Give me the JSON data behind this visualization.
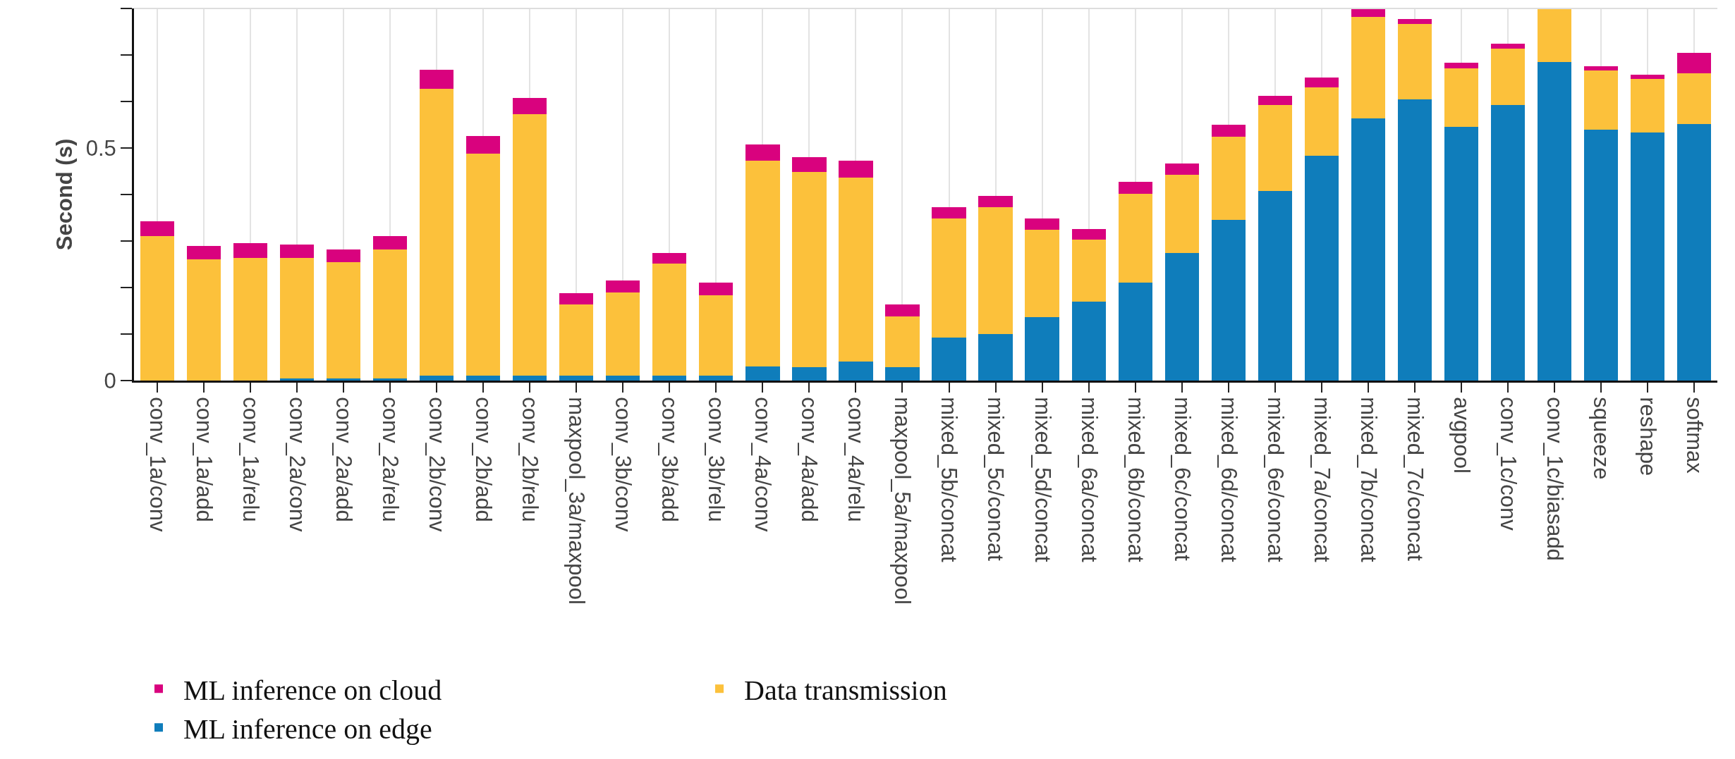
{
  "chart_data": {
    "type": "bar",
    "stacked": true,
    "ylabel": "Second (s)",
    "categories": [
      "conv_1a/conv",
      "conv_1a/add",
      "conv_1a/relu",
      "conv_2a/conv",
      "conv_2a/add",
      "conv_2a/relu",
      "conv_2b/conv",
      "conv_2b/add",
      "conv_2b/relu",
      "maxpool_3a/maxpool",
      "conv_3b/conv",
      "conv_3b/add",
      "conv_3b/relu",
      "conv_4a/conv",
      "conv_4a/add",
      "conv_4a/relu",
      "maxpool_5a/maxpool",
      "mixed_5b/concat",
      "mixed_5c/concat",
      "mixed_5d/concat",
      "mixed_6a/concat",
      "mixed_6b/concat",
      "mixed_6c/concat",
      "mixed_6d/concat",
      "mixed_6e/concat",
      "mixed_7a/concat",
      "mixed_7b/concat",
      "mixed_7c/concat",
      "avgpool",
      "conv_1c/conv",
      "conv_1c/biasadd",
      "squeeze",
      "reshape",
      "softmax"
    ],
    "series": [
      {
        "name": "ML inference on edge",
        "color": "#0f7dbb",
        "values": [
          0,
          0,
          0,
          0.005,
          0.005,
          0.005,
          0.01,
          0.01,
          0.01,
          0.011,
          0.011,
          0.011,
          0.011,
          0.03,
          0.029,
          0.041,
          0.029,
          0.093,
          0.1,
          0.136,
          0.17,
          0.211,
          0.275,
          0.346,
          0.407,
          0.483,
          0.563,
          0.605,
          0.546,
          0.593,
          0.685,
          0.54,
          0.534,
          0.552
        ]
      },
      {
        "name": "Data transmission",
        "color": "#fcc13b",
        "values": [
          0.31,
          0.261,
          0.264,
          0.258,
          0.25,
          0.277,
          0.618,
          0.478,
          0.562,
          0.153,
          0.179,
          0.24,
          0.173,
          0.443,
          0.42,
          0.396,
          0.109,
          0.256,
          0.273,
          0.188,
          0.133,
          0.191,
          0.167,
          0.179,
          0.185,
          0.148,
          0.219,
          0.162,
          0.125,
          0.12,
          0.115,
          0.126,
          0.114,
          0.108
        ]
      },
      {
        "name": "ML inference on cloud",
        "color": "#d9027e",
        "values": [
          0.032,
          0.028,
          0.031,
          0.03,
          0.027,
          0.029,
          0.04,
          0.038,
          0.036,
          0.024,
          0.025,
          0.023,
          0.027,
          0.035,
          0.032,
          0.035,
          0.025,
          0.024,
          0.024,
          0.025,
          0.023,
          0.025,
          0.025,
          0.025,
          0.02,
          0.021,
          0.018,
          0.011,
          0.012,
          0.011,
          null,
          0.01,
          0.01,
          0.044
        ]
      }
    ],
    "ylim": [
      0,
      0.8
    ],
    "yticks": [
      0,
      {
        "value": 0.1,
        "label": null
      },
      {
        "value": 0.2,
        "label": null
      },
      {
        "value": 0.3,
        "label": null
      },
      {
        "value": 0.4,
        "label": null
      },
      0.5,
      {
        "value": 0.6,
        "label": null
      },
      {
        "value": 0.7,
        "label": null
      },
      {
        "value": 0.8,
        "label": null
      }
    ],
    "grid": "x",
    "legend": "bottom"
  }
}
